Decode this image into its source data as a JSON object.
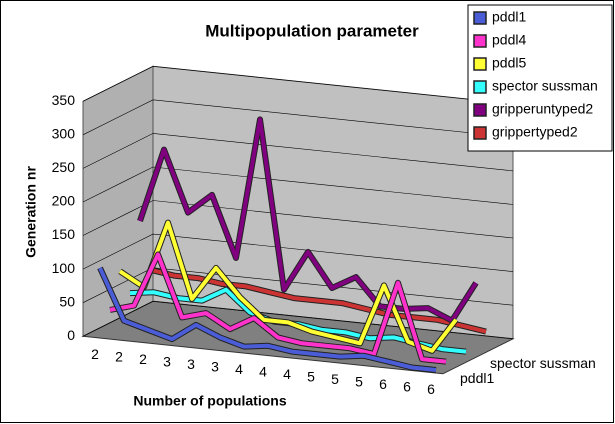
{
  "chart_data": {
    "type": "line3d",
    "title": "Multipopulation parameter",
    "x_label": "Number of populations",
    "y_label": "Generation nr",
    "categories": [
      "2",
      "2",
      "2",
      "3",
      "3",
      "3",
      "4",
      "4",
      "4",
      "5",
      "5",
      "5",
      "6",
      "6",
      "6"
    ],
    "depth_labels": [
      {
        "index": 0,
        "label": "pddl1"
      },
      {
        "index": 3,
        "label": "spector sussman"
      }
    ],
    "ylim": [
      0,
      350
    ],
    "yticks": [
      0,
      50,
      100,
      150,
      200,
      250,
      300,
      350
    ],
    "grid": true,
    "legend": "top-right",
    "series": [
      {
        "name": "pddl1",
        "color": "#4a5cd6",
        "values": [
          100,
          25,
          15,
          5,
          30,
          15,
          5,
          10,
          5,
          5,
          5,
          10,
          5,
          0,
          0
        ]
      },
      {
        "name": "pddl4",
        "color": "#ff33cc",
        "values": [
          30,
          40,
          120,
          30,
          40,
          20,
          40,
          15,
          10,
          10,
          10,
          5,
          115,
          5,
          5
        ]
      },
      {
        "name": "pddl5",
        "color": "#ffff33",
        "values": [
          80,
          60,
          160,
          50,
          100,
          60,
          30,
          30,
          20,
          15,
          10,
          100,
          20,
          10,
          60
        ]
      },
      {
        "name": "spector sussman",
        "color": "#33ffff",
        "values": [
          40,
          45,
          40,
          40,
          60,
          30,
          20,
          20,
          15,
          15,
          10,
          15,
          10,
          5,
          5
        ]
      },
      {
        "name": "gripperuntyped2",
        "color": "#800080",
        "values": [
          140,
          250,
          160,
          190,
          100,
          310,
          60,
          120,
          70,
          90,
          50,
          50,
          55,
          40,
          100
        ]
      },
      {
        "name": "grippertyped2",
        "color": "#cc3333",
        "values": [
          60,
          55,
          55,
          50,
          50,
          45,
          40,
          40,
          40,
          35,
          30,
          30,
          30,
          25,
          20
        ]
      }
    ]
  }
}
